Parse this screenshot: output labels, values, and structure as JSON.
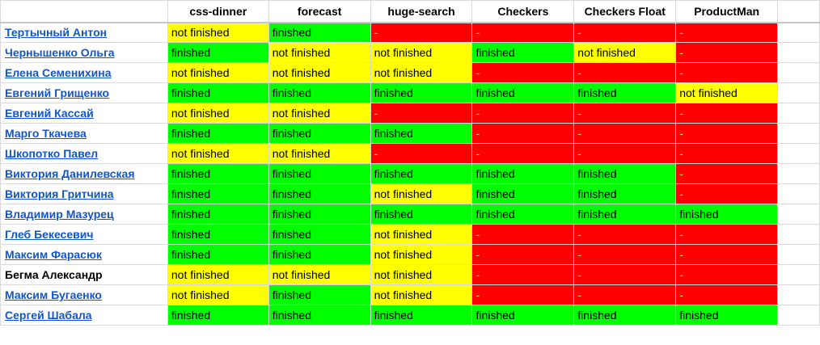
{
  "columns": [
    "css-dinner",
    "forecast",
    "huge-search",
    "Checkers",
    "Checkers Float",
    "ProductMan"
  ],
  "colors": {
    "finished": "#00ff00",
    "not_finished": "#ffff00",
    "dash": "#ff0000",
    "link": "#1155cc"
  },
  "rows": [
    {
      "name": "Тертычный Антон",
      "link": true,
      "cells": [
        "not finished",
        "finished",
        "-",
        "-",
        "-",
        "-"
      ]
    },
    {
      "name": "Чернышенко Ольга",
      "link": true,
      "cells": [
        "finished",
        "not finished",
        "not finished",
        "finished",
        "not finished",
        "-"
      ]
    },
    {
      "name": "Елена Семенихина",
      "link": true,
      "cells": [
        "not finished",
        "not finished",
        "not finished",
        "-",
        "-",
        "-"
      ]
    },
    {
      "name": "Евгений Грищенко",
      "link": true,
      "cells": [
        "finished",
        "finished",
        "finished",
        "finished",
        "finished",
        "not finished"
      ]
    },
    {
      "name": "Евгений Кассай",
      "link": true,
      "cells": [
        "not finished",
        "not finished",
        "-",
        "-",
        "-",
        "-"
      ]
    },
    {
      "name": "Марго Ткачева",
      "link": true,
      "cells": [
        "finished",
        "finished",
        "finished",
        "-",
        "-",
        "-"
      ]
    },
    {
      "name": "Шкопотко Павел",
      "link": true,
      "cells": [
        "not finished",
        "not finished",
        "-",
        "-",
        "-",
        "-"
      ]
    },
    {
      "name": "Виктория Данилевская",
      "link": true,
      "cells": [
        "finished",
        "finished",
        "finished",
        "finished",
        "finished",
        "-"
      ]
    },
    {
      "name": "Виктория Гритчина",
      "link": true,
      "cells": [
        "finished",
        "finished",
        "not finished",
        "finished",
        "finished",
        "-"
      ]
    },
    {
      "name": "Владимир Мазурец",
      "link": true,
      "cells": [
        "finished",
        "finished",
        "finished",
        "finished",
        "finished",
        "finished"
      ]
    },
    {
      "name": "Глеб Бекесевич",
      "link": true,
      "cells": [
        "finished",
        "finished",
        "not finished",
        "-",
        "-",
        "-"
      ]
    },
    {
      "name": "Максим Фарасюк",
      "link": true,
      "cells": [
        "finished",
        "finished",
        "not finished",
        "-",
        "-",
        "-"
      ]
    },
    {
      "name": "Бегма Александр",
      "link": false,
      "cells": [
        "not finished",
        "not finished",
        "not finished",
        "-",
        "-",
        "-"
      ]
    },
    {
      "name": "Максим Бугаенко",
      "link": true,
      "cells": [
        "not finished",
        "finished",
        "not finished",
        "-",
        "-",
        "-"
      ]
    },
    {
      "name": "Сергей Шабала",
      "link": true,
      "cells": [
        "finished",
        "finished",
        "finished",
        "finished",
        "finished",
        "finished"
      ]
    }
  ]
}
